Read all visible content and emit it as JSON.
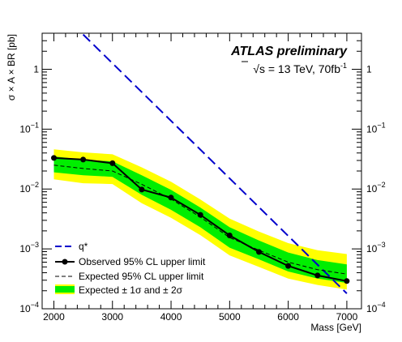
{
  "chart_data": {
    "type": "line",
    "title": "ATLAS preliminary",
    "subtitle_prefix": "√s = 13 TeV, 70fb",
    "subtitle_exp": "-1",
    "xlabel": "Mass [GeV]",
    "ylabel": "σ × A × BR [pb]",
    "xlim": [
      1800,
      7250
    ],
    "ylim": [
      0.0001,
      4
    ],
    "yscale": "log",
    "grid": false,
    "legend_position": "bottom-left",
    "x_ticks": [
      2000,
      3000,
      4000,
      5000,
      6000,
      7000
    ],
    "y_ticks": [
      {
        "value": 1,
        "base": "1",
        "exp": ""
      },
      {
        "value": 0.1,
        "base": "10",
        "exp": "−1"
      },
      {
        "value": 0.01,
        "base": "10",
        "exp": "−2"
      },
      {
        "value": 0.001,
        "base": "10",
        "exp": "−3"
      },
      {
        "value": 0.0001,
        "base": "10",
        "exp": "−4"
      }
    ],
    "series": [
      {
        "name": "q*",
        "kind": "theory",
        "color": "#0000cc",
        "x": [
          2500,
          7000
        ],
        "y": [
          3.8,
          0.00018
        ]
      },
      {
        "name": "Observed 95% CL upper limit",
        "kind": "observed",
        "color": "#000000",
        "x": [
          2000,
          2500,
          3000,
          3500,
          4000,
          4500,
          5000,
          5500,
          6000,
          6500,
          7000
        ],
        "y": [
          0.033,
          0.031,
          0.027,
          0.0098,
          0.0072,
          0.0037,
          0.00168,
          0.00089,
          0.00052,
          0.00036,
          0.00029
        ]
      },
      {
        "name": "Expected 95% CL upper limit",
        "kind": "expected",
        "color": "#000000",
        "x": [
          2000,
          2500,
          3000,
          3500,
          4000,
          4500,
          5000,
          5500,
          6000,
          6500,
          7000
        ],
        "y": [
          0.025,
          0.022,
          0.02,
          0.012,
          0.0068,
          0.0034,
          0.00155,
          0.00095,
          0.0006,
          0.00045,
          0.00038
        ]
      }
    ],
    "band_1sigma": {
      "x": [
        2000,
        2500,
        3000,
        3500,
        4000,
        4500,
        5000,
        5500,
        6000,
        6500,
        7000
      ],
      "low": [
        0.019,
        0.017,
        0.016,
        0.008,
        0.0045,
        0.0023,
        0.00105,
        0.00067,
        0.00042,
        0.00032,
        0.00027
      ],
      "high": [
        0.035,
        0.031,
        0.029,
        0.017,
        0.0097,
        0.0049,
        0.0023,
        0.00138,
        0.00087,
        0.00065,
        0.00055
      ],
      "color": "#00ee00"
    },
    "band_2sigma": {
      "x": [
        2000,
        2500,
        3000,
        3500,
        4000,
        4500,
        5000,
        5500,
        6000,
        6500,
        7000
      ],
      "low": [
        0.0145,
        0.0125,
        0.0121,
        0.0058,
        0.0033,
        0.0017,
        0.00078,
        0.0005,
        0.00032,
        0.00025,
        0.00021
      ],
      "high": [
        0.046,
        0.041,
        0.038,
        0.023,
        0.0132,
        0.0067,
        0.0032,
        0.00195,
        0.00125,
        0.00095,
        0.00082
      ],
      "color": "#ffff00"
    },
    "legend": {
      "theory": "q*",
      "observed": "Observed 95% CL upper limit",
      "expected": "Expected 95% CL upper limit",
      "band": "Expected ± 1σ and ± 2σ"
    }
  }
}
